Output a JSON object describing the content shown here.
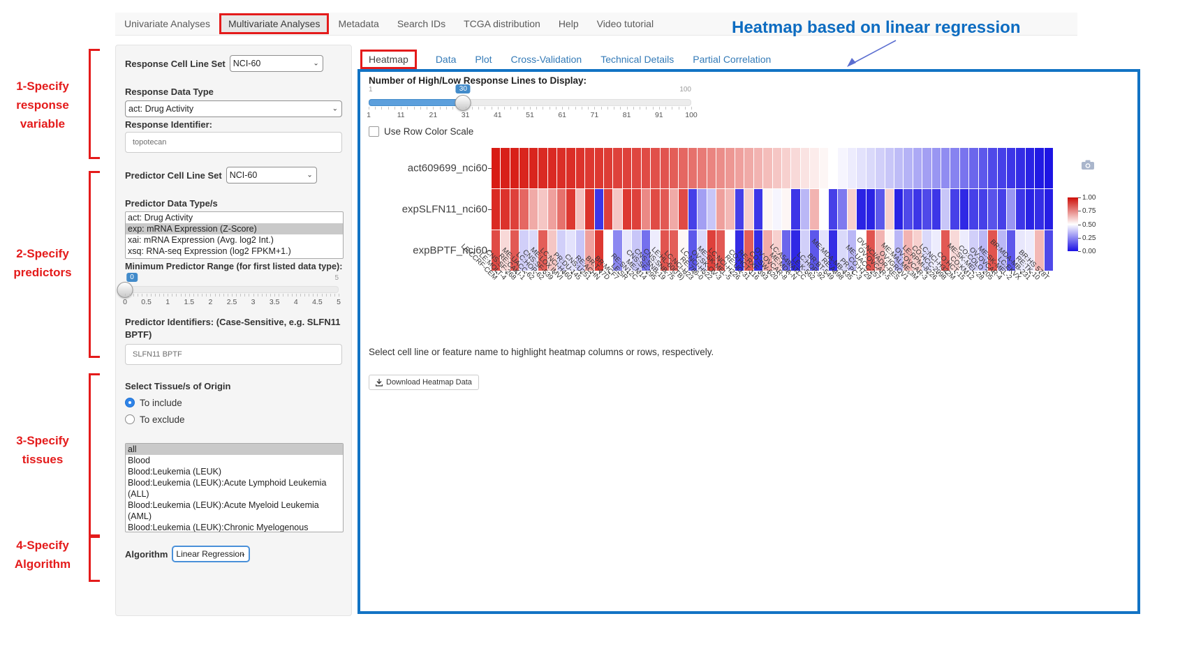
{
  "nav": {
    "items": [
      {
        "label": "Univariate Analyses",
        "active": false
      },
      {
        "label": "Multivariate Analyses",
        "active": true
      },
      {
        "label": "Metadata",
        "active": false
      },
      {
        "label": "Search IDs",
        "active": false
      },
      {
        "label": "TCGA distribution",
        "active": false
      },
      {
        "label": "Help",
        "active": false
      },
      {
        "label": "Video tutorial",
        "active": false
      }
    ]
  },
  "annotations": {
    "heading": "Heatmap based on linear regression",
    "heading_color": "#0d6cc1",
    "step_color": "#e41b1b",
    "steps": [
      {
        "label": "1-Specify\nresponse\nvariable"
      },
      {
        "label": "2-Specify\npredictors"
      },
      {
        "label": "3-Specify\ntissues"
      },
      {
        "label": "4-Specify\nAlgorithm"
      }
    ]
  },
  "sidebar": {
    "response_cell_line_set_label": "Response Cell Line Set",
    "response_cell_line_set_value": "NCI-60",
    "response_data_type_label": "Response Data Type",
    "response_data_type_value": "act: Drug Activity",
    "response_identifier_label": "Response Identifier:",
    "response_identifier_value": "topotecan",
    "predictor_cell_line_set_label": "Predictor Cell Line Set",
    "predictor_cell_line_set_value": "NCI-60",
    "predictor_data_types_label": "Predictor Data Type/s",
    "predictor_data_types": {
      "options": [
        "act: Drug Activity",
        "exp: mRNA Expression (Z-Score)",
        "xai: mRNA Expression (Avg. log2 Int.)",
        "xsq: RNA-seq Expression (log2 FPKM+1.)"
      ],
      "selected": "exp: mRNA Expression (Z-Score)"
    },
    "min_predictor_range_label": "Minimum Predictor Range (for first listed data type):",
    "min_range_slider": {
      "value": "0",
      "max_label": "5",
      "tick_labels": [
        "0",
        "0.5",
        "1",
        "1.5",
        "2",
        "2.5",
        "3",
        "3.5",
        "4",
        "4.5",
        "5"
      ]
    },
    "predictor_identifiers_label": "Predictor Identifiers: (Case-Sensitive, e.g. SLFN11 BPTF)",
    "predictor_identifiers_value": "SLFN11 BPTF",
    "tissue_label": "Select Tissue/s of Origin",
    "tissue_radios": {
      "include": "To include",
      "exclude": "To exclude",
      "selected": "include"
    },
    "tissue_list": {
      "options": [
        "all",
        "Blood",
        "Blood:Leukemia (LEUK)",
        "Blood:Leukemia (LEUK):Acute Lymphoid Leukemia (ALL)",
        "Blood:Leukemia (LEUK):Acute Myeloid Leukemia (AML)",
        "Blood:Leukemia (LEUK):Chronic Myelogenous Leukemia (CML)"
      ],
      "selected": "all"
    },
    "algorithm_label": "Algorithm",
    "algorithm_value": "Linear Regression"
  },
  "main": {
    "tabs": [
      {
        "label": "Heatmap",
        "active": true
      },
      {
        "label": "Data",
        "active": false
      },
      {
        "label": "Plot",
        "active": false
      },
      {
        "label": "Cross-Validation",
        "active": false
      },
      {
        "label": "Technical Details",
        "active": false
      },
      {
        "label": "Partial Correlation",
        "active": false
      }
    ],
    "slider": {
      "label": "Number of High/Low Response Lines to Display:",
      "min_label": "1",
      "max_label": "100",
      "value": "30",
      "min": 1,
      "max": 100,
      "tick_labels": [
        "1",
        "11",
        "21",
        "31",
        "41",
        "51",
        "61",
        "71",
        "81",
        "91",
        "100"
      ]
    },
    "row_color_scale_label": "Use Row Color Scale",
    "row_color_scale_checked": false,
    "hint_text": "Select cell line or feature name to highlight heatmap columns or rows, respectively.",
    "download_button_label": "Download Heatmap Data",
    "camera_icon": "download-plot-as-png"
  },
  "chart_data": {
    "type": "heatmap",
    "rows": [
      "act609699_nci60",
      "expSLFN11_nci60",
      "expBPTF_nci60"
    ],
    "columns": [
      "LE:CCRF-CEM",
      "LE:MOLT-4",
      "CNS:SF-268",
      "RE:CAKI-1",
      "ME:UACC-62",
      "LC:HOP-62",
      "CNS:SF-539",
      "ME:LOX IMVI",
      "LC:NCI-H460",
      "PR:DU-145",
      "CNS:U251",
      "RE:ACHN",
      "BR:T-47D",
      "BR:MCF7",
      "LE:SR",
      "RE:SN12C",
      "ME:M14",
      "CNS:SF-295",
      "CNS:SNB-19",
      "CNS:SNB-75",
      "LE:HL-60(TB)",
      "LC:NCI-H23",
      "RE:786-0",
      "LC:NCI-H522",
      "OV:SK-OV-3",
      "ME:SK-MEL-5",
      "LC:NCI-H226",
      "RE:UO-31",
      "CO:HCT-116",
      "RE:RXF 393",
      "CO:SW-620",
      "OV:OVCAR-8",
      "ME:MDA-N",
      "LC:A549/ATCC",
      "LE:K-562",
      "LC:HOP-92",
      "BR:BT-549",
      "RE:A498",
      "ME:MDA-MB-435",
      "PR:PC-3",
      "CO:HT29",
      "ME:UACC-257",
      "OV:OVCAR-5",
      "OV:NCI/ADR-RES",
      "OV:IGROV1",
      "ME:MALME-3M",
      "OV:OVCAR-3",
      "LE:RPMI-8226",
      "CO:HCC-2998",
      "LC:NCI-H322M",
      "CO:HCT-15",
      "CO:KM12",
      "ME:SK-MEL-28",
      "CO:COLO 205",
      "OV:OVCAR-4",
      "ME:SK-MEL-2",
      "LC:EKVX",
      "BR:MDA-MB-231",
      "RE:TK-10",
      "BR:HS 578T"
    ],
    "values": [
      [
        0.98,
        0.97,
        0.97,
        0.96,
        0.96,
        0.95,
        0.95,
        0.94,
        0.94,
        0.93,
        0.92,
        0.92,
        0.91,
        0.9,
        0.9,
        0.89,
        0.88,
        0.87,
        0.86,
        0.84,
        0.82,
        0.8,
        0.78,
        0.76,
        0.74,
        0.72,
        0.7,
        0.68,
        0.66,
        0.64,
        0.62,
        0.6,
        0.58,
        0.56,
        0.54,
        0.52,
        0.5,
        0.48,
        0.46,
        0.44,
        0.42,
        0.4,
        0.38,
        0.36,
        0.34,
        0.32,
        0.3,
        0.28,
        0.26,
        0.24,
        0.21,
        0.18,
        0.15,
        0.12,
        0.1,
        0.08,
        0.06,
        0.04,
        0.02,
        0.01
      ],
      [
        0.95,
        0.93,
        0.9,
        0.82,
        0.68,
        0.62,
        0.7,
        0.8,
        0.92,
        0.63,
        0.93,
        0.08,
        0.9,
        0.62,
        0.92,
        0.9,
        0.75,
        0.88,
        0.85,
        0.68,
        0.88,
        0.1,
        0.3,
        0.38,
        0.7,
        0.65,
        0.1,
        0.6,
        0.08,
        0.52,
        0.48,
        0.52,
        0.08,
        0.35,
        0.66,
        0.5,
        0.1,
        0.22,
        0.6,
        0.04,
        0.04,
        0.15,
        0.6,
        0.04,
        0.12,
        0.08,
        0.12,
        0.08,
        0.38,
        0.1,
        0.05,
        0.1,
        0.1,
        0.14,
        0.1,
        0.28,
        0.08,
        0.04,
        0.06,
        0.03
      ],
      [
        0.88,
        0.58,
        0.85,
        0.4,
        0.42,
        0.84,
        0.62,
        0.4,
        0.44,
        0.38,
        0.7,
        0.92,
        0.5,
        0.25,
        0.45,
        0.38,
        0.2,
        0.46,
        0.86,
        0.84,
        0.52,
        0.15,
        0.42,
        0.9,
        0.85,
        0.5,
        0.06,
        0.84,
        0.06,
        0.68,
        0.6,
        0.18,
        0.05,
        0.4,
        0.15,
        0.44,
        0.06,
        0.42,
        0.35,
        0.5,
        0.86,
        0.66,
        0.52,
        0.35,
        0.66,
        0.6,
        0.42,
        0.46,
        0.85,
        0.58,
        0.46,
        0.4,
        0.35,
        0.86,
        0.35,
        0.15,
        0.45,
        0.46,
        0.65,
        0.12
      ]
    ],
    "colorscale": {
      "low": "#1810e2",
      "mid": "#ffffff",
      "high": "#d6120a",
      "min": 0,
      "max": 1
    },
    "legend_tick_labels": [
      "1.00",
      "0.75",
      "0.50",
      "0.25",
      "0.00"
    ],
    "legend_position": "right",
    "grid": false
  }
}
